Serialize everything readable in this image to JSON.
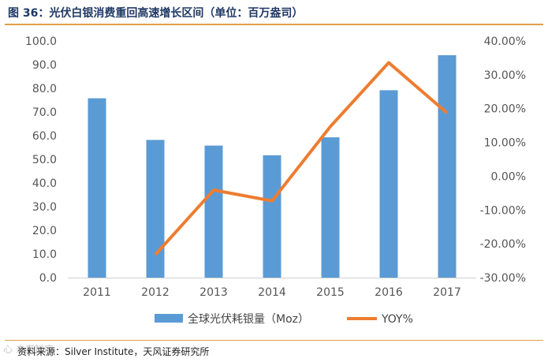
{
  "header": {
    "title": "图 36：光伏白银消费重回高速增长区间（单位：百万盎司）"
  },
  "footer": {
    "source": "资料来源：Silver Institute，天风证券研究所",
    "watermark": "心 未来智库"
  },
  "colors": {
    "bar": "#5b9bd5",
    "line": "#ed7d31",
    "title": "#1f3864",
    "rule": "#e2a049"
  },
  "chart_data": {
    "type": "bar",
    "title": "光伏白银消费重回高速增长区间",
    "categories": [
      "2011",
      "2012",
      "2013",
      "2014",
      "2015",
      "2016",
      "2017"
    ],
    "ylim": [
      0,
      100
    ],
    "y_ticks": [
      "0.0",
      "10.0",
      "20.0",
      "30.0",
      "40.0",
      "50.0",
      "60.0",
      "70.0",
      "80.0",
      "90.0",
      "100.0"
    ],
    "y2lim": [
      -30,
      40
    ],
    "y2_ticks": [
      "-30.00%",
      "-20.00%",
      "-10.00%",
      "0.00%",
      "10.00%",
      "20.00%",
      "30.00%",
      "40.00%"
    ],
    "series": [
      {
        "name": "全球光伏耗银量（Moz）",
        "kind": "bar",
        "axis": "left",
        "values": [
          75.8,
          58.2,
          55.8,
          51.7,
          59.3,
          79.2,
          94.0
        ]
      },
      {
        "name": "YOY%",
        "kind": "line",
        "axis": "right",
        "values": [
          null,
          -23.2,
          -4.1,
          -7.3,
          14.7,
          33.6,
          18.7
        ]
      }
    ],
    "legend": "bottom"
  }
}
